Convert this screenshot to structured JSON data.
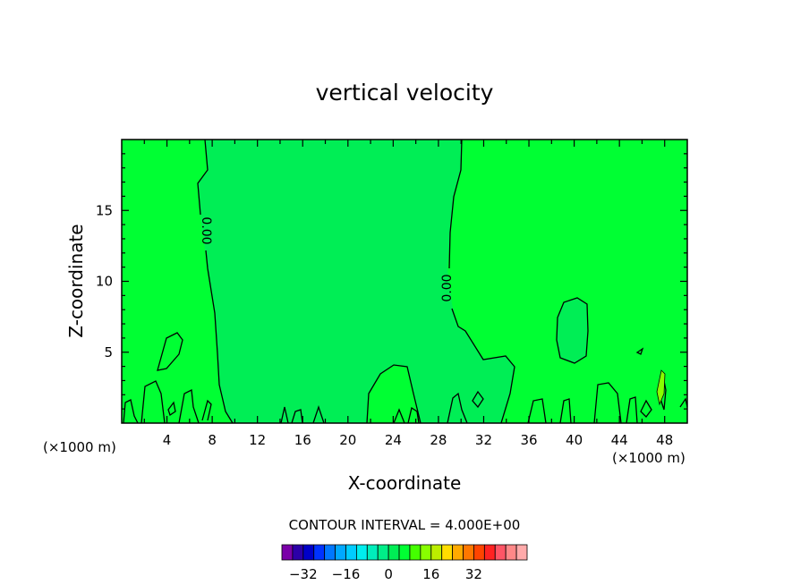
{
  "chart_data": {
    "type": "heatmap",
    "subtype": "filled-contour",
    "title": "vertical velocity",
    "xlabel": "X-coordinate",
    "ylabel": "Z-coordinate",
    "x_unit": "(×1000 m)",
    "xlim": [
      0,
      50
    ],
    "ylim": [
      0,
      20
    ],
    "x_ticks": [
      4,
      8,
      12,
      16,
      20,
      24,
      28,
      32,
      36,
      40,
      44,
      48
    ],
    "y_ticks": [
      5,
      10,
      15
    ],
    "field": {
      "background_level": "0 to 4",
      "background_color": "#00ff33",
      "negative_regions_color": "#00ee55",
      "contour_line_value": "0.00"
    },
    "contour_labels": [
      "0.00",
      "0.00"
    ],
    "contour_interval_label": "CONTOUR INTERVAL = 4.000E+00",
    "colorbar": {
      "colors": [
        "#7a00a8",
        "#2c00a8",
        "#0000c8",
        "#0033ff",
        "#0077ff",
        "#00a8ff",
        "#00ccff",
        "#00eeee",
        "#00eebb",
        "#00ee88",
        "#00ee55",
        "#00ff33",
        "#44ff00",
        "#88ff00",
        "#bbee00",
        "#ffdd00",
        "#ffaa00",
        "#ff7700",
        "#ff4400",
        "#ff2222",
        "#ff5566",
        "#ff8888",
        "#ffaaaa"
      ],
      "tick_labels": [
        "-32",
        "-16",
        "0",
        "16",
        "32"
      ]
    }
  }
}
